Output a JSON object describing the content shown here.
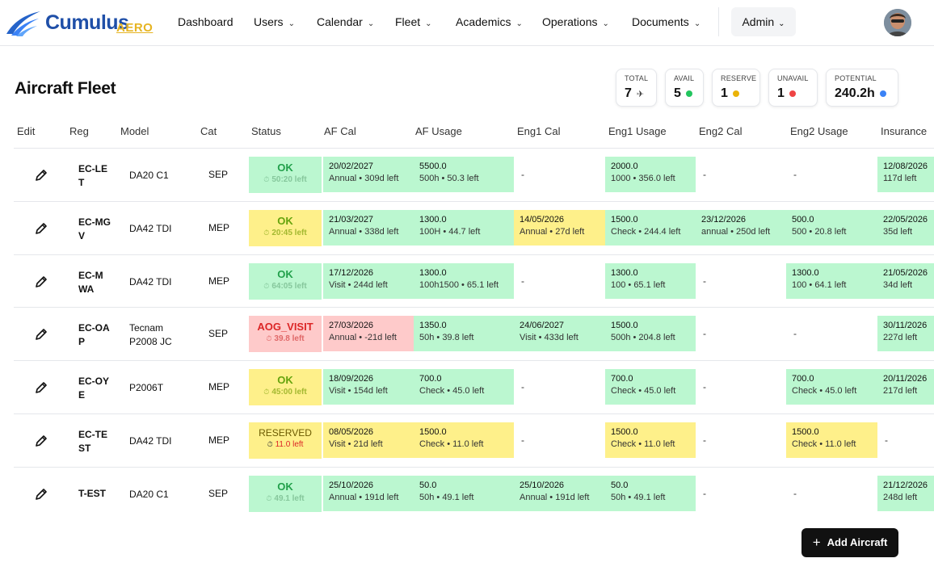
{
  "brand": {
    "name": "Cumulus",
    "sub": "AERO"
  },
  "nav": {
    "items": [
      {
        "label": "Dashboard",
        "dropdown": false
      },
      {
        "label": "Users",
        "dropdown": true
      },
      {
        "label": "Calendar",
        "dropdown": true
      },
      {
        "label": "Fleet",
        "dropdown": true
      },
      {
        "label": "Academics",
        "dropdown": true
      },
      {
        "label": "Operations",
        "dropdown": true
      },
      {
        "label": "Documents",
        "dropdown": true
      }
    ],
    "admin_label": "Admin"
  },
  "page": {
    "title": "Aircraft Fleet"
  },
  "stats": {
    "total": {
      "label": "TOTAL",
      "value": "7"
    },
    "avail": {
      "label": "AVAIL",
      "value": "5",
      "color": "#22c55e"
    },
    "reserve": {
      "label": "RESERVE",
      "value": "1",
      "color": "#eab308"
    },
    "unavail": {
      "label": "UNAVAIL",
      "value": "1",
      "color": "#ef4444"
    },
    "potential": {
      "label": "POTENTIAL",
      "value": "240.2h",
      "color": "#3b82f6"
    }
  },
  "table": {
    "headers": [
      "Edit",
      "Reg",
      "Model",
      "Cat",
      "Status",
      "AF Cal",
      "AF Usage",
      "Eng1 Cal",
      "Eng1 Usage",
      "Eng2 Cal",
      "Eng2 Usage",
      "Insurance"
    ],
    "rows": [
      {
        "reg": "EC-LET",
        "model": "DA20 C1",
        "cat": "SEP",
        "status": {
          "main": "OK",
          "sub": "50:20 left",
          "tone": "green"
        },
        "af_cal": {
          "value": "20/02/2027",
          "sub": "Annual • 309d left",
          "tone": "green"
        },
        "af_usage": {
          "value": "5500.0",
          "sub": "500h • 50.3 left",
          "tone": "green"
        },
        "eng1_cal": {
          "value": "-",
          "tone": "none"
        },
        "eng1_usage": {
          "value": "2000.0",
          "sub": "1000 • 356.0 left",
          "tone": "green"
        },
        "eng2_cal": {
          "value": "-",
          "tone": "none"
        },
        "eng2_usage": {
          "value": "-",
          "tone": "none"
        },
        "insurance": {
          "value": "12/08/2026",
          "sub": "117d left",
          "tone": "green"
        }
      },
      {
        "reg": "EC-MGV",
        "model": "DA42 TDI",
        "cat": "MEP",
        "status": {
          "main": "OK",
          "sub": "20:45 left",
          "tone": "yellow"
        },
        "af_cal": {
          "value": "21/03/2027",
          "sub": "Annual • 338d left",
          "tone": "green"
        },
        "af_usage": {
          "value": "1300.0",
          "sub": "100H • 44.7 left",
          "tone": "green"
        },
        "eng1_cal": {
          "value": "14/05/2026",
          "sub": "Annual • 27d left",
          "tone": "yellow"
        },
        "eng1_usage": {
          "value": "1500.0",
          "sub": "Check • 244.4 left",
          "tone": "green"
        },
        "eng2_cal": {
          "value": "23/12/2026",
          "sub": "annual • 250d left",
          "tone": "green"
        },
        "eng2_usage": {
          "value": "500.0",
          "sub": "500 • 20.8 left",
          "tone": "green"
        },
        "insurance": {
          "value": "22/05/2026",
          "sub": "35d left",
          "tone": "green"
        }
      },
      {
        "reg": "EC-MWA",
        "model": "DA42 TDI",
        "cat": "MEP",
        "status": {
          "main": "OK",
          "sub": "64:05 left",
          "tone": "green"
        },
        "af_cal": {
          "value": "17/12/2026",
          "sub": "Visit • 244d left",
          "tone": "green"
        },
        "af_usage": {
          "value": "1300.0",
          "sub": "100h1500 • 65.1 left",
          "tone": "green"
        },
        "eng1_cal": {
          "value": "-",
          "tone": "none"
        },
        "eng1_usage": {
          "value": "1300.0",
          "sub": "100 • 65.1 left",
          "tone": "green"
        },
        "eng2_cal": {
          "value": "-",
          "tone": "none"
        },
        "eng2_usage": {
          "value": "1300.0",
          "sub": "100 • 64.1 left",
          "tone": "green"
        },
        "insurance": {
          "value": "21/05/2026",
          "sub": "34d left",
          "tone": "green"
        }
      },
      {
        "reg": "EC-OAP",
        "model": "Tecnam P2008 JC",
        "cat": "SEP",
        "status": {
          "main": "AOG_VISIT",
          "sub": "39.8 left",
          "tone": "red"
        },
        "af_cal": {
          "value": "27/03/2026",
          "sub": "Annual • -21d left",
          "tone": "red"
        },
        "af_usage": {
          "value": "1350.0",
          "sub": "50h • 39.8 left",
          "tone": "green"
        },
        "eng1_cal": {
          "value": "24/06/2027",
          "sub": "Visit • 433d left",
          "tone": "green"
        },
        "eng1_usage": {
          "value": "1500.0",
          "sub": "500h • 204.8 left",
          "tone": "green"
        },
        "eng2_cal": {
          "value": "-",
          "tone": "none"
        },
        "eng2_usage": {
          "value": "-",
          "tone": "none"
        },
        "insurance": {
          "value": "30/11/2026",
          "sub": "227d left",
          "tone": "green"
        }
      },
      {
        "reg": "EC-OYE",
        "model": "P2006T",
        "cat": "MEP",
        "status": {
          "main": "OK",
          "sub": "45:00 left",
          "tone": "yellow"
        },
        "af_cal": {
          "value": "18/09/2026",
          "sub": "Visit • 154d left",
          "tone": "green"
        },
        "af_usage": {
          "value": "700.0",
          "sub": "Check • 45.0 left",
          "tone": "green"
        },
        "eng1_cal": {
          "value": "-",
          "tone": "none"
        },
        "eng1_usage": {
          "value": "700.0",
          "sub": "Check • 45.0 left",
          "tone": "green"
        },
        "eng2_cal": {
          "value": "-",
          "tone": "none"
        },
        "eng2_usage": {
          "value": "700.0",
          "sub": "Check • 45.0 left",
          "tone": "green"
        },
        "insurance": {
          "value": "20/11/2026",
          "sub": "217d left",
          "tone": "green"
        }
      },
      {
        "reg": "EC-TEST",
        "model": "DA42 TDI",
        "cat": "MEP",
        "status": {
          "main": "RESERVED",
          "sub": "11.0 left",
          "tone": "reserved"
        },
        "af_cal": {
          "value": "08/05/2026",
          "sub": "Visit • 21d left",
          "tone": "yellow"
        },
        "af_usage": {
          "value": "1500.0",
          "sub": "Check • 11.0 left",
          "tone": "yellow"
        },
        "eng1_cal": {
          "value": "-",
          "tone": "none"
        },
        "eng1_usage": {
          "value": "1500.0",
          "sub": "Check • 11.0 left",
          "tone": "yellow"
        },
        "eng2_cal": {
          "value": "-",
          "tone": "none"
        },
        "eng2_usage": {
          "value": "1500.0",
          "sub": "Check • 11.0 left",
          "tone": "yellow"
        },
        "insurance": {
          "value": "-",
          "tone": "none"
        }
      },
      {
        "reg": "T-EST",
        "model": "DA20 C1",
        "cat": "SEP",
        "status": {
          "main": "OK",
          "sub": "49.1 left",
          "tone": "green"
        },
        "af_cal": {
          "value": "25/10/2026",
          "sub": "Annual • 191d left",
          "tone": "green"
        },
        "af_usage": {
          "value": "50.0",
          "sub": "50h • 49.1 left",
          "tone": "green"
        },
        "eng1_cal": {
          "value": "25/10/2026",
          "sub": "Annual • 191d left",
          "tone": "green"
        },
        "eng1_usage": {
          "value": "50.0",
          "sub": "50h • 49.1 left",
          "tone": "green"
        },
        "eng2_cal": {
          "value": "-",
          "tone": "none"
        },
        "eng2_usage": {
          "value": "-",
          "tone": "none"
        },
        "insurance": {
          "value": "21/12/2026",
          "sub": "248d left",
          "tone": "green"
        }
      }
    ]
  },
  "actions": {
    "add_aircraft": "Add Aircraft"
  },
  "colors": {
    "green_bg": "#bbf7d0",
    "yellow_bg": "#fef08a",
    "red_bg": "#fecaca",
    "ok_text": "#22a04b",
    "ok_sub": "#86c79c",
    "yellow_ok_text": "#65a30d",
    "yellow_ok_sub": "#a3b830",
    "red_text": "#dc2626",
    "red_sub": "#e06868",
    "reserved_text": "#6b5a00",
    "reserved_sub": "#dc2626"
  }
}
